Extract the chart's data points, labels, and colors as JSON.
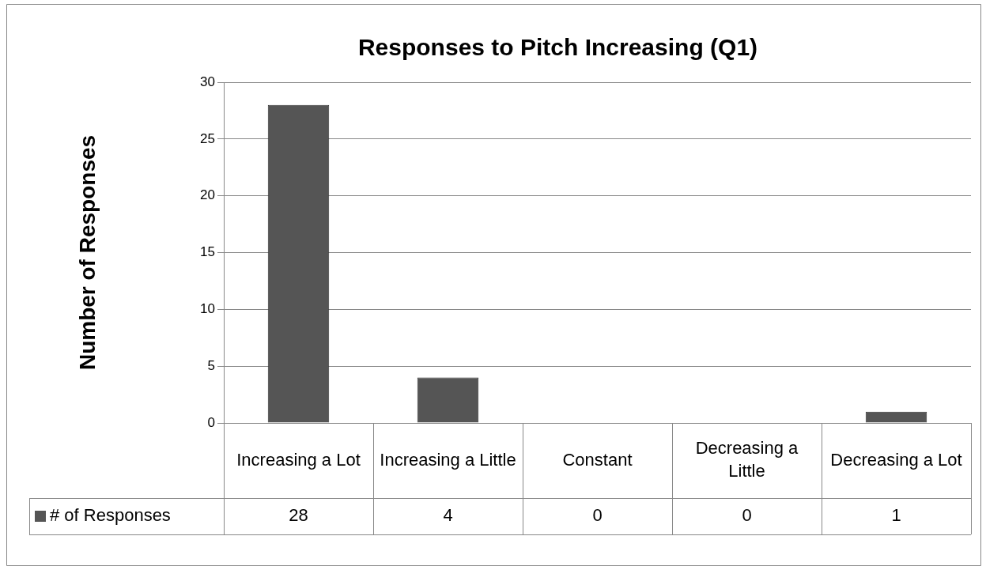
{
  "chart_data": {
    "type": "bar",
    "title": "Responses to Pitch Increasing (Q1)",
    "ylabel": "Number of Responses",
    "categories": [
      "Increasing a Lot",
      "Increasing a Little",
      "Constant",
      "Decreasing a Little",
      "Decreasing a Lot"
    ],
    "series": [
      {
        "name": "# of Responses",
        "color": "#555555",
        "values": [
          28,
          4,
          0,
          0,
          1
        ]
      }
    ],
    "ylim": [
      0,
      30
    ],
    "yticks": [
      0,
      5,
      10,
      15,
      20,
      25,
      30
    ],
    "grid": "y",
    "data_labels": true
  }
}
